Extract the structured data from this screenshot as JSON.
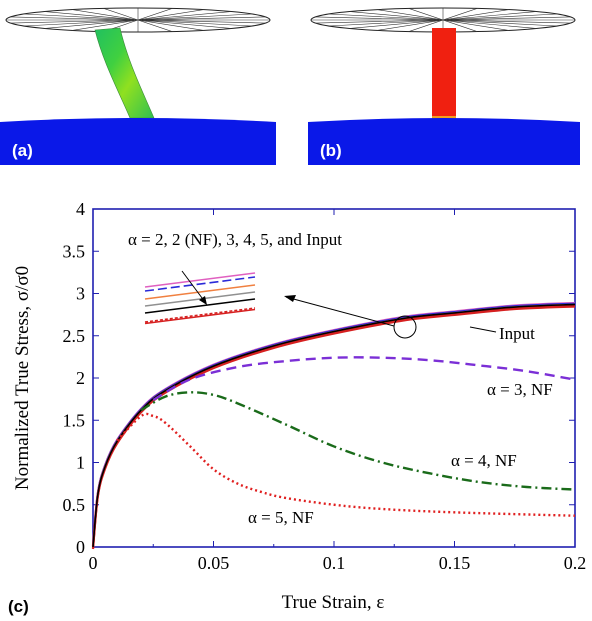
{
  "panels": {
    "a": {
      "label": "(a)"
    },
    "b": {
      "label": "(b)"
    },
    "c": {
      "label": "(c)"
    }
  },
  "chart_data": {
    "type": "line",
    "xlabel": "True Strain, ε",
    "ylabel": "Normalized True Stress, σ/σ0",
    "xlim": [
      0,
      0.2
    ],
    "ylim": [
      0,
      4
    ],
    "x_ticks": [
      "0",
      "0.05",
      "0.1",
      "0.15",
      "0.2"
    ],
    "y_ticks": [
      "0",
      "0.5",
      "1",
      "1.5",
      "2",
      "2.5",
      "3",
      "3.5",
      "4"
    ],
    "grid": false,
    "legend": "none",
    "series": [
      {
        "name": "α = 2, 2 (NF), 3, 4, 5, and Input",
        "style": "solid bundle",
        "x": [
          0,
          0.002,
          0.005,
          0.01,
          0.02,
          0.03,
          0.05,
          0.075,
          0.1,
          0.13,
          0.15,
          0.175,
          0.2
        ],
        "y": [
          0,
          0.62,
          0.95,
          1.25,
          1.62,
          1.85,
          2.14,
          2.38,
          2.55,
          2.71,
          2.77,
          2.84,
          2.87
        ]
      },
      {
        "name": "Input",
        "color": "#000000",
        "style": "solid",
        "x": [
          0,
          0.002,
          0.005,
          0.01,
          0.02,
          0.03,
          0.05,
          0.075,
          0.1,
          0.13,
          0.15,
          0.175,
          0.2
        ],
        "y": [
          0,
          0.62,
          0.95,
          1.25,
          1.62,
          1.85,
          2.14,
          2.38,
          2.55,
          2.71,
          2.77,
          2.84,
          2.87
        ]
      },
      {
        "name": "α = 3, NF",
        "color": "#7b2fd6",
        "style": "dashed",
        "x": [
          0.025,
          0.04,
          0.06,
          0.08,
          0.1,
          0.12,
          0.14,
          0.16,
          0.18,
          0.2
        ],
        "y": [
          1.74,
          1.98,
          2.13,
          2.2,
          2.24,
          2.24,
          2.21,
          2.15,
          2.08,
          1.98
        ]
      },
      {
        "name": "α = 4, NF",
        "color": "#1a6b1a",
        "style": "dash-dot",
        "x": [
          0.02,
          0.03,
          0.04,
          0.05,
          0.06,
          0.08,
          0.1,
          0.12,
          0.14,
          0.16,
          0.18,
          0.2
        ],
        "y": [
          1.62,
          1.78,
          1.83,
          1.8,
          1.7,
          1.45,
          1.19,
          1.0,
          0.87,
          0.77,
          0.71,
          0.68
        ]
      },
      {
        "name": "α = 5, NF",
        "color": "#e02020",
        "style": "dotted",
        "x": [
          0.01,
          0.02,
          0.025,
          0.03,
          0.04,
          0.05,
          0.06,
          0.07,
          0.08,
          0.1,
          0.12,
          0.15,
          0.2
        ],
        "y": [
          1.26,
          1.55,
          1.55,
          1.47,
          1.2,
          0.92,
          0.75,
          0.65,
          0.58,
          0.5,
          0.45,
          0.41,
          0.37
        ]
      }
    ],
    "annotations": [
      {
        "text": "α = 2, 2 (NF), 3, 4, 5, and Input"
      },
      {
        "text": "Input"
      },
      {
        "text": "α = 3, NF"
      },
      {
        "text": "α = 4, NF"
      },
      {
        "text": "α = 5, NF"
      }
    ]
  },
  "colors": {
    "plot_frame": "#1f1fb0",
    "substrate": "#0a18e8",
    "pillar_red": "#f02010",
    "bundle_red": "#d62020",
    "bundle_pink": "#e060c0",
    "bundle_blue": "#2a2ad8",
    "bundle_orange": "#f08040",
    "bundle_gray": "#909090"
  }
}
